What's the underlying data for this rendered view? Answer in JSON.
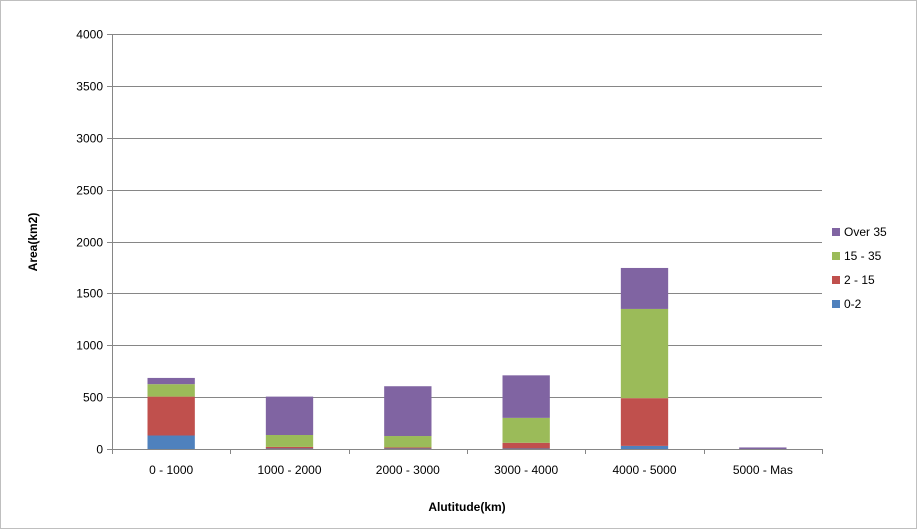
{
  "chart_data": {
    "type": "bar",
    "stacked": true,
    "categories": [
      "0 - 1000",
      "1000 - 2000",
      "2000 - 3000",
      "3000 - 4000",
      "4000 - 5000",
      "5000 - Mas"
    ],
    "series": [
      {
        "name": "0-2",
        "color": "#4f81bd",
        "values": [
          130,
          5,
          5,
          5,
          30,
          0
        ]
      },
      {
        "name": "2 - 15",
        "color": "#c0504d",
        "values": [
          375,
          15,
          10,
          55,
          460,
          0
        ]
      },
      {
        "name": "15 - 35",
        "color": "#9bbb59",
        "values": [
          120,
          115,
          110,
          240,
          860,
          0
        ]
      },
      {
        "name": "Over 35",
        "color": "#8064a2",
        "values": [
          60,
          370,
          480,
          410,
          395,
          15
        ]
      }
    ],
    "xlabel": "Alutitude(km)",
    "ylabel": "Area(km2)",
    "ylim": [
      0,
      4000
    ],
    "yticks": [
      "0",
      "500",
      "1000",
      "1500",
      "2000",
      "2500",
      "3000",
      "3500",
      "4000"
    ],
    "grid": true,
    "legend": "right",
    "legend_order": [
      "Over 35",
      "15 - 35",
      "2 - 15",
      "0-2"
    ]
  }
}
